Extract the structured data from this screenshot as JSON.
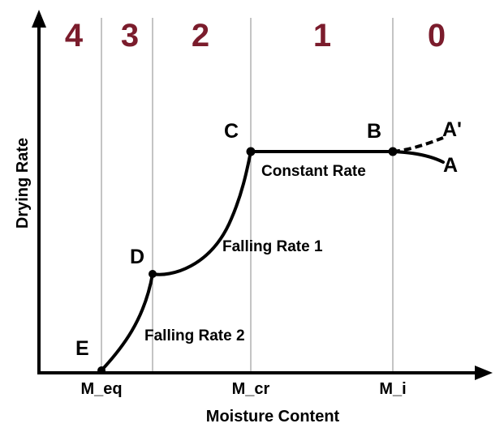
{
  "colors": {
    "zone_label": "#7b1c2c",
    "ink": "#000000",
    "guide_line": "#888888"
  },
  "zones": [
    {
      "id": "zone-4",
      "label": "4"
    },
    {
      "id": "zone-3",
      "label": "3"
    },
    {
      "id": "zone-2",
      "label": "2"
    },
    {
      "id": "zone-1",
      "label": "1"
    },
    {
      "id": "zone-0",
      "label": "0"
    }
  ],
  "points": {
    "A": "A",
    "A_prime": "A'",
    "B": "B",
    "C": "C",
    "D": "D",
    "E": "E"
  },
  "regions": {
    "constant": "Constant Rate",
    "falling1": "Falling Rate 1",
    "falling2": "Falling Rate 2"
  },
  "axes": {
    "x_title": "Moisture Content",
    "y_title": "Drying Rate",
    "x_ticks": [
      {
        "id": "m-eq",
        "label": "M_eq"
      },
      {
        "id": "m-cr",
        "label": "M_cr"
      },
      {
        "id": "m-i",
        "label": "M_i"
      }
    ]
  }
}
